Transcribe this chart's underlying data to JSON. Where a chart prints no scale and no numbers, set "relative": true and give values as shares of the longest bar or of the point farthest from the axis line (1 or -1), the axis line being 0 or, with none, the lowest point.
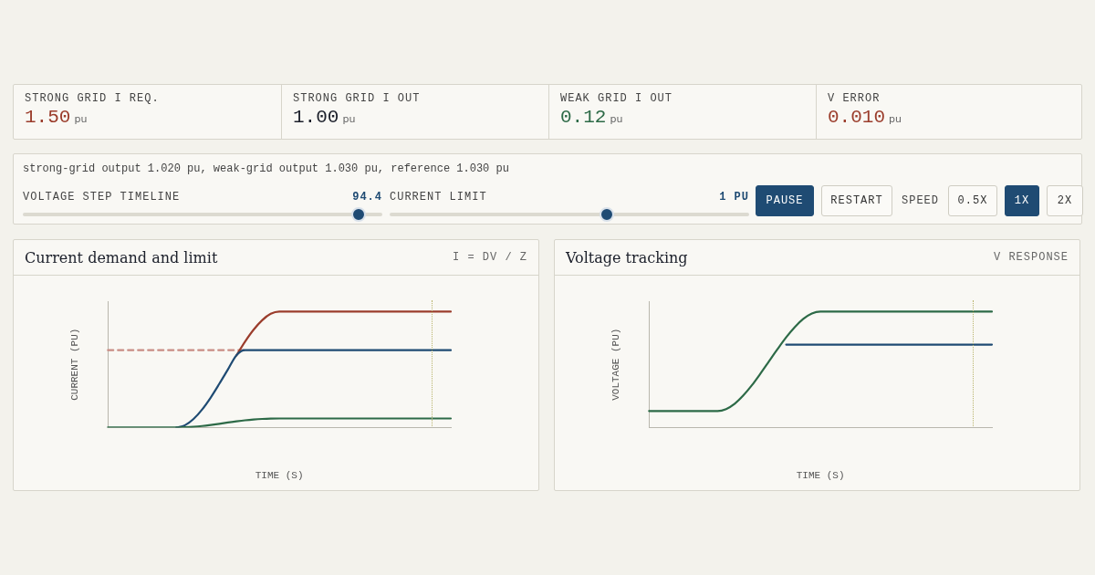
{
  "chart_data": [
    {
      "type": "other",
      "annotations": [
        "STRONG GRID I REQ.",
        "1.50",
        "pu",
        "STRONG GRID I OUT",
        "1.00",
        "pu",
        "WEAK GRID I OUT",
        "0.12",
        "pu",
        "V ERROR",
        "0.010",
        "pu",
        "strong-grid output 1.020 pu, weak-grid output 1.030 pu, reference 1.030 pu",
        "VOLTAGE STEP TIMELINE",
        "94.4",
        "CURRENT LIMIT",
        "1 PU",
        "PAUSE",
        "RESTART",
        "SPEED",
        "0.5X",
        "1X",
        "2X"
      ]
    },
    {
      "type": "line",
      "relative": true,
      "title": "Current demand and limit",
      "subtitle": "I = DV / Z",
      "xlabel": "TIME (S)",
      "ylabel": "CURRENT (PU)",
      "grid": false,
      "legend": false,
      "marker": "none",
      "line_style": "solid",
      "categories": [
        null,
        null,
        null,
        null,
        null,
        null,
        null,
        null,
        null,
        null,
        null,
        null,
        null,
        null,
        null,
        null,
        null,
        null,
        null,
        null,
        null,
        null,
        null,
        null,
        null,
        null,
        null,
        null,
        null,
        null,
        null,
        null,
        null,
        null,
        null,
        null,
        null,
        null,
        null,
        null,
        null
      ],
      "series": [
        {
          "color": "#c98c84",
          "line_style": "dashed",
          "values": [
            0.667,
            0.667,
            0.667,
            0.667,
            0.667,
            0.667,
            0.667,
            0.667,
            0.667,
            0.667,
            0.667,
            0.667,
            0.667,
            0.667,
            0.667,
            0.667,
            0.667,
            null,
            null,
            null,
            null,
            null,
            null,
            null,
            null,
            null,
            null,
            null,
            null,
            null,
            null,
            null,
            null,
            null,
            null,
            null,
            null,
            null,
            null,
            null,
            null
          ]
        },
        {
          "color": "#9b3d2c",
          "values": [
            null,
            null,
            null,
            null,
            null,
            null,
            null,
            null,
            null,
            null,
            null,
            null,
            null,
            null,
            null,
            0.623,
            0.741,
            0.844,
            0.926,
            0.981,
            1,
            1,
            1,
            1,
            1,
            1,
            1,
            1,
            1,
            1,
            1,
            1,
            1,
            1,
            1,
            1,
            1,
            1,
            1,
            1,
            1
          ]
        },
        {
          "color": "#1f4b73",
          "values": [
            null,
            null,
            null,
            null,
            null,
            null,
            null,
            null,
            0,
            0.02,
            0.074,
            0.156,
            0.259,
            0.377,
            0.5,
            0.623,
            0.667,
            0.667,
            0.667,
            0.667,
            0.667,
            0.667,
            0.667,
            0.667,
            0.667,
            0.667,
            0.667,
            0.667,
            0.667,
            0.667,
            0.667,
            0.667,
            0.667,
            0.667,
            0.667,
            0.667,
            0.667,
            0.667,
            0.667,
            0.667,
            0.667
          ]
        },
        {
          "color": "#2d6a47",
          "values": [
            0,
            0,
            0,
            0,
            0,
            0,
            0,
            0,
            0,
            0.002,
            0.006,
            0.013,
            0.022,
            0.032,
            0.043,
            0.053,
            0.062,
            0.069,
            0.074,
            0.077,
            0.078,
            0.078,
            0.078,
            0.078,
            0.078,
            0.078,
            0.078,
            0.078,
            0.078,
            0.078,
            0.078,
            0.078,
            0.078,
            0.078,
            0.078,
            0.078,
            0.078,
            0.078,
            0.078,
            0.078,
            0.078
          ]
        }
      ]
    },
    {
      "type": "line",
      "relative": true,
      "title": "Voltage tracking",
      "subtitle": "V RESPONSE",
      "xlabel": "TIME (S)",
      "ylabel": "VOLTAGE (PU)",
      "grid": false,
      "legend": false,
      "marker": "none",
      "line_style": "solid",
      "categories": [
        null,
        null,
        null,
        null,
        null,
        null,
        null,
        null,
        null,
        null,
        null,
        null,
        null,
        null,
        null,
        null,
        null,
        null,
        null,
        null,
        null,
        null,
        null,
        null,
        null,
        null,
        null,
        null,
        null,
        null,
        null,
        null,
        null,
        null,
        null,
        null,
        null,
        null,
        null,
        null,
        null
      ],
      "series": [
        {
          "color": "#1f4b73",
          "values": [
            null,
            null,
            null,
            null,
            null,
            null,
            null,
            null,
            null,
            null,
            null,
            null,
            null,
            null,
            null,
            null,
            0.715,
            0.715,
            0.715,
            0.715,
            0.715,
            0.715,
            0.715,
            0.715,
            0.715,
            0.715,
            0.715,
            0.715,
            0.715,
            0.715,
            0.715,
            0.715,
            0.715,
            0.715,
            0.715,
            0.715,
            0.715,
            0.715,
            0.715,
            0.715,
            0.715
          ]
        },
        {
          "color": "#2d6a47",
          "values": [
            0.142,
            0.142,
            0.142,
            0.142,
            0.142,
            0.142,
            0.142,
            0.142,
            0.142,
            0.159,
            0.205,
            0.276,
            0.364,
            0.465,
            0.571,
            0.677,
            0.778,
            0.866,
            0.937,
            0.984,
            1,
            1,
            1,
            1,
            1,
            1,
            1,
            1,
            1,
            1,
            1,
            1,
            1,
            1,
            1,
            1,
            1,
            1,
            1,
            1,
            1
          ]
        }
      ]
    }
  ]
}
